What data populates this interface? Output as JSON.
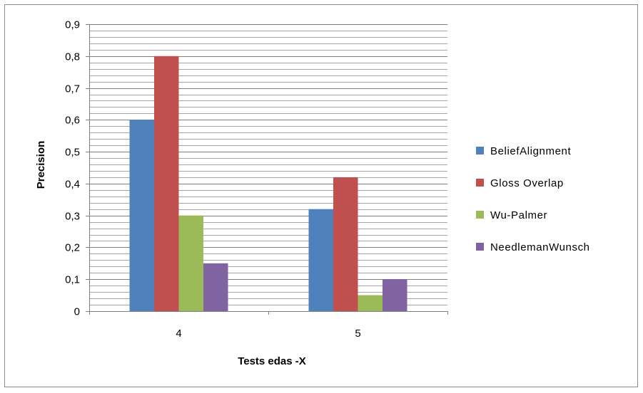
{
  "chart_data": {
    "type": "bar",
    "title": "",
    "xlabel": "Tests edas -X",
    "ylabel": "Precision",
    "categories": [
      "4",
      "5"
    ],
    "series": [
      {
        "name": "BeliefAlignment",
        "values": [
          0.6,
          0.32
        ],
        "color": "#4F81BD"
      },
      {
        "name": "Gloss Overlap",
        "values": [
          0.8,
          0.42
        ],
        "color": "#C0504D"
      },
      {
        "name": "Wu-Palmer",
        "values": [
          0.3,
          0.05
        ],
        "color": "#9BBB59"
      },
      {
        "name": "NeedlemanWunsch",
        "values": [
          0.15,
          0.1
        ],
        "color": "#8064A2"
      }
    ],
    "ylim": [
      0,
      0.9
    ],
    "yticks": [
      "0",
      "0,1",
      "0,2",
      "0,3",
      "0,4",
      "0,5",
      "0,6",
      "0,7",
      "0,8",
      "0,9"
    ],
    "major_tick_step": 0.1,
    "minor_gridlines_per_major": 5,
    "grid": true,
    "legend_position": "right"
  }
}
